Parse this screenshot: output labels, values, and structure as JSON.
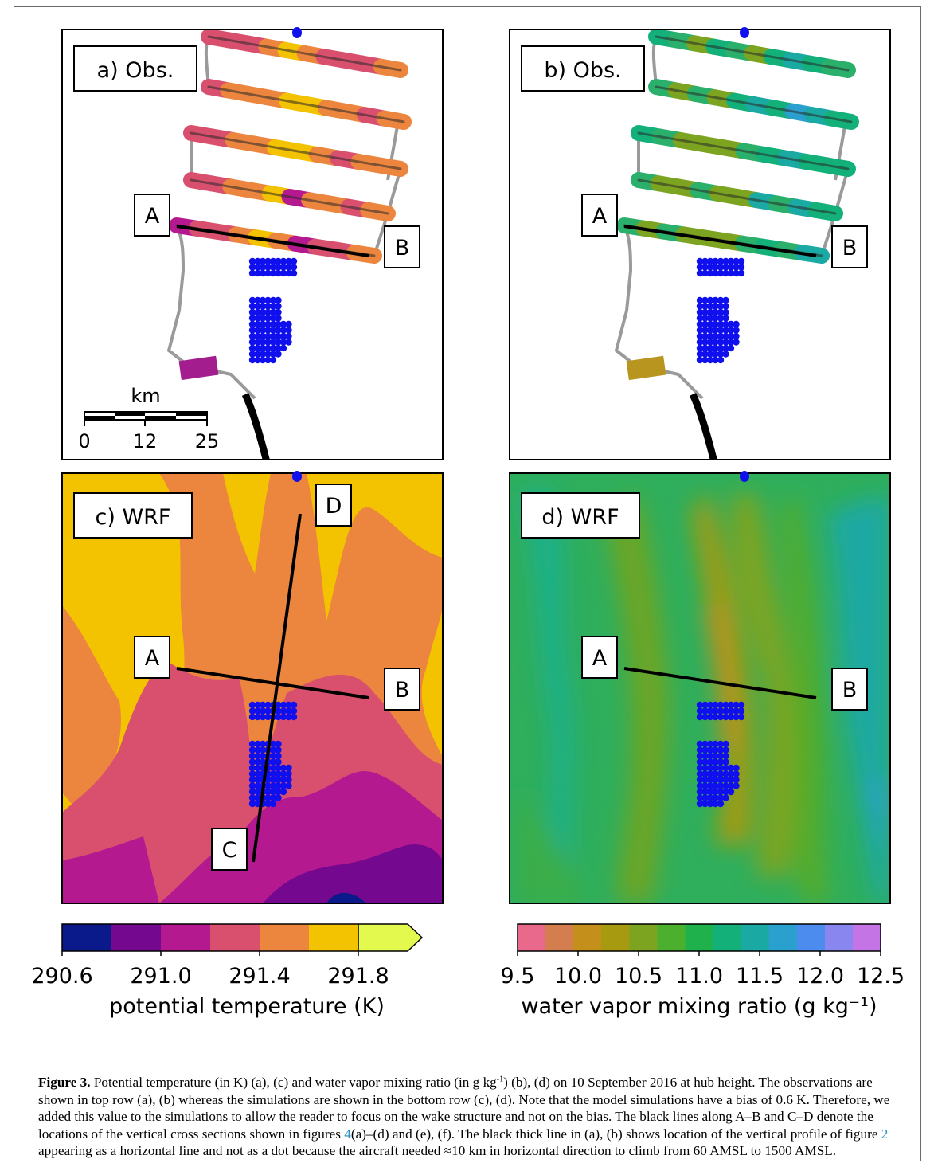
{
  "figure": {
    "panels": [
      {
        "id": "a",
        "label": "a) Obs.",
        "variable": "potential_temperature",
        "source": "observations"
      },
      {
        "id": "b",
        "label": "b) Obs.",
        "variable": "water_vapor_mixing_ratio",
        "source": "observations"
      },
      {
        "id": "c",
        "label": "c) WRF",
        "variable": "potential_temperature",
        "source": "simulation"
      },
      {
        "id": "d",
        "label": "d) WRF",
        "variable": "water_vapor_mixing_ratio",
        "source": "simulation"
      }
    ],
    "cross_section_labels": {
      "a": "A",
      "b": "B",
      "c": "C",
      "d": "D"
    },
    "scale_bar": {
      "unit": "km",
      "ticks": [
        "0",
        "12",
        "25"
      ]
    }
  },
  "colorbars": {
    "temperature": {
      "label": "potential temperature (K)",
      "tick_labels": [
        "290.6",
        "291.0",
        "291.4",
        "291.8"
      ],
      "levels": [
        290.6,
        290.8,
        291.0,
        291.2,
        291.4,
        291.6,
        291.8,
        292.0
      ],
      "extend": "max",
      "colors": [
        "#0b1a8a",
        "#74088f",
        "#b5198f",
        "#d9506f",
        "#ec863f",
        "#f3c200",
        "#e3f94e"
      ]
    },
    "humidity": {
      "label": "water vapor mixing ratio (g kg⁻¹)",
      "tick_labels": [
        "9.5",
        "10.0",
        "10.5",
        "11.0",
        "11.5",
        "12.0",
        "12.5"
      ],
      "range": [
        9.5,
        12.5
      ],
      "colors": [
        "#e8698c",
        "#d47e4f",
        "#c48f1a",
        "#a79a10",
        "#7da420",
        "#4ab02d",
        "#1fb24c",
        "#13b07a",
        "#1ba9a3",
        "#2aa0cf",
        "#4b8cee",
        "#8a86f0",
        "#c474e5"
      ]
    }
  },
  "chart_data": [
    {
      "type": "heatmap",
      "title": "a) Obs.",
      "variable": "potential temperature (K)",
      "color_range": [
        290.6,
        292.0
      ],
      "note": "observations along flight legs",
      "cross_section": [
        "A",
        "B"
      ]
    },
    {
      "type": "heatmap",
      "title": "b) Obs.",
      "variable": "water vapor mixing ratio (g kg-1)",
      "color_range": [
        9.5,
        12.5
      ],
      "cross_section": [
        "A",
        "B"
      ]
    },
    {
      "type": "heatmap",
      "title": "c) WRF",
      "variable": "potential temperature (K)",
      "color_range": [
        290.6,
        292.0
      ],
      "cross_section": [
        "A",
        "B",
        "C",
        "D"
      ]
    },
    {
      "type": "heatmap",
      "title": "d) WRF",
      "variable": "water vapor mixing ratio (g kg-1)",
      "color_range": [
        9.5,
        12.5
      ],
      "cross_section": [
        "A",
        "B"
      ]
    }
  ],
  "caption": {
    "label": "Figure 3.",
    "text_1": " Potential temperature (in K) (a), (c) and water vapor mixing ratio (in g kg",
    "sup_1": "-1",
    "text_2": ") (b), (d) on 10  September  2016 at hub height. The observations are shown in top row (a), (b) whereas the simulations are shown in the bottom row (c), (d). Note that the model simulations have a bias of 0.6 K. Therefore, we added this value to the simulations to allow the reader to focus on the wake structure and not on the bias. The black lines along A–B and C–D denote the locations of the vertical cross sections shown in figures ",
    "ref_1": "4",
    "text_3": "(a)–(d) and (e), (f). The black thick line in (a), (b) shows location of the vertical profile of figure ",
    "ref_2": "2",
    "text_4": " appearing as a horizontal line and not as a dot because the aircraft needed ≈10 km in horizontal direction to climb from 60  AMSL to 1500  AMSL."
  }
}
